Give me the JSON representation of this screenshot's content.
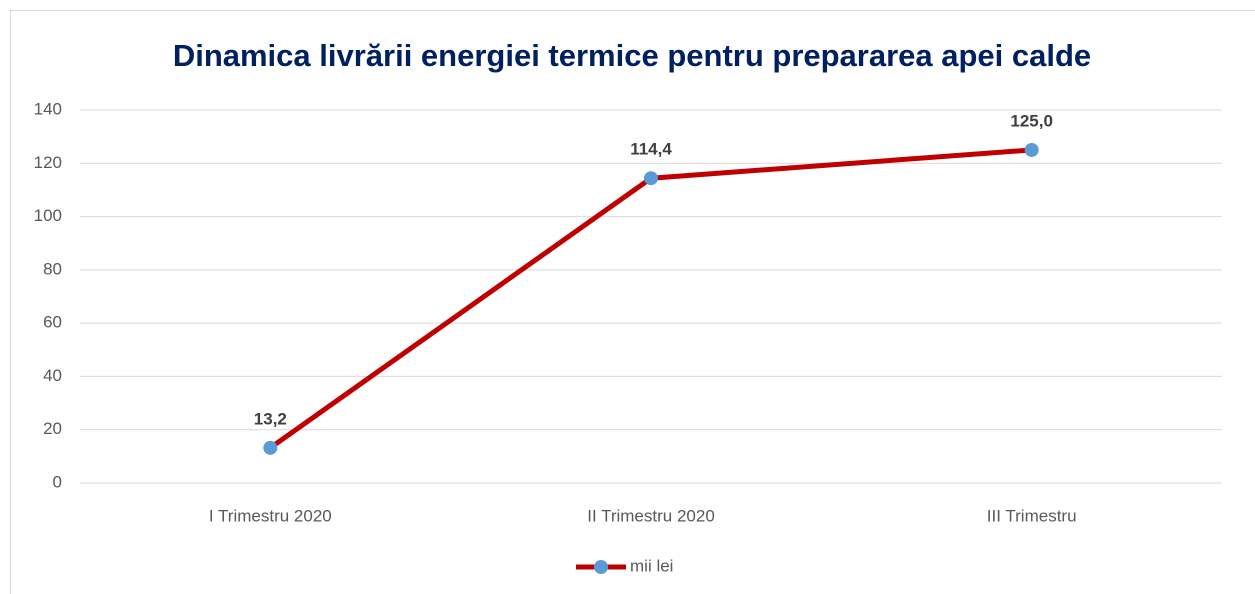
{
  "chart_data": {
    "type": "line",
    "title": "Dinamica livrării energiei termice pentru prepararea apei calde",
    "categories": [
      "I Trimestru 2020",
      "II Trimestru 2020",
      "III Trimestru"
    ],
    "series": [
      {
        "name": "mii lei",
        "color": "#c00000",
        "marker_color": "#5b9bd5",
        "values": [
          13.2,
          114.4,
          125.0
        ],
        "value_labels": [
          "13,2",
          "114,4",
          "125,0"
        ]
      }
    ],
    "ylim": [
      0,
      140
    ],
    "yticks": [
      0,
      20,
      40,
      60,
      80,
      100,
      120,
      140
    ],
    "grid": true,
    "legend": "bottom"
  }
}
